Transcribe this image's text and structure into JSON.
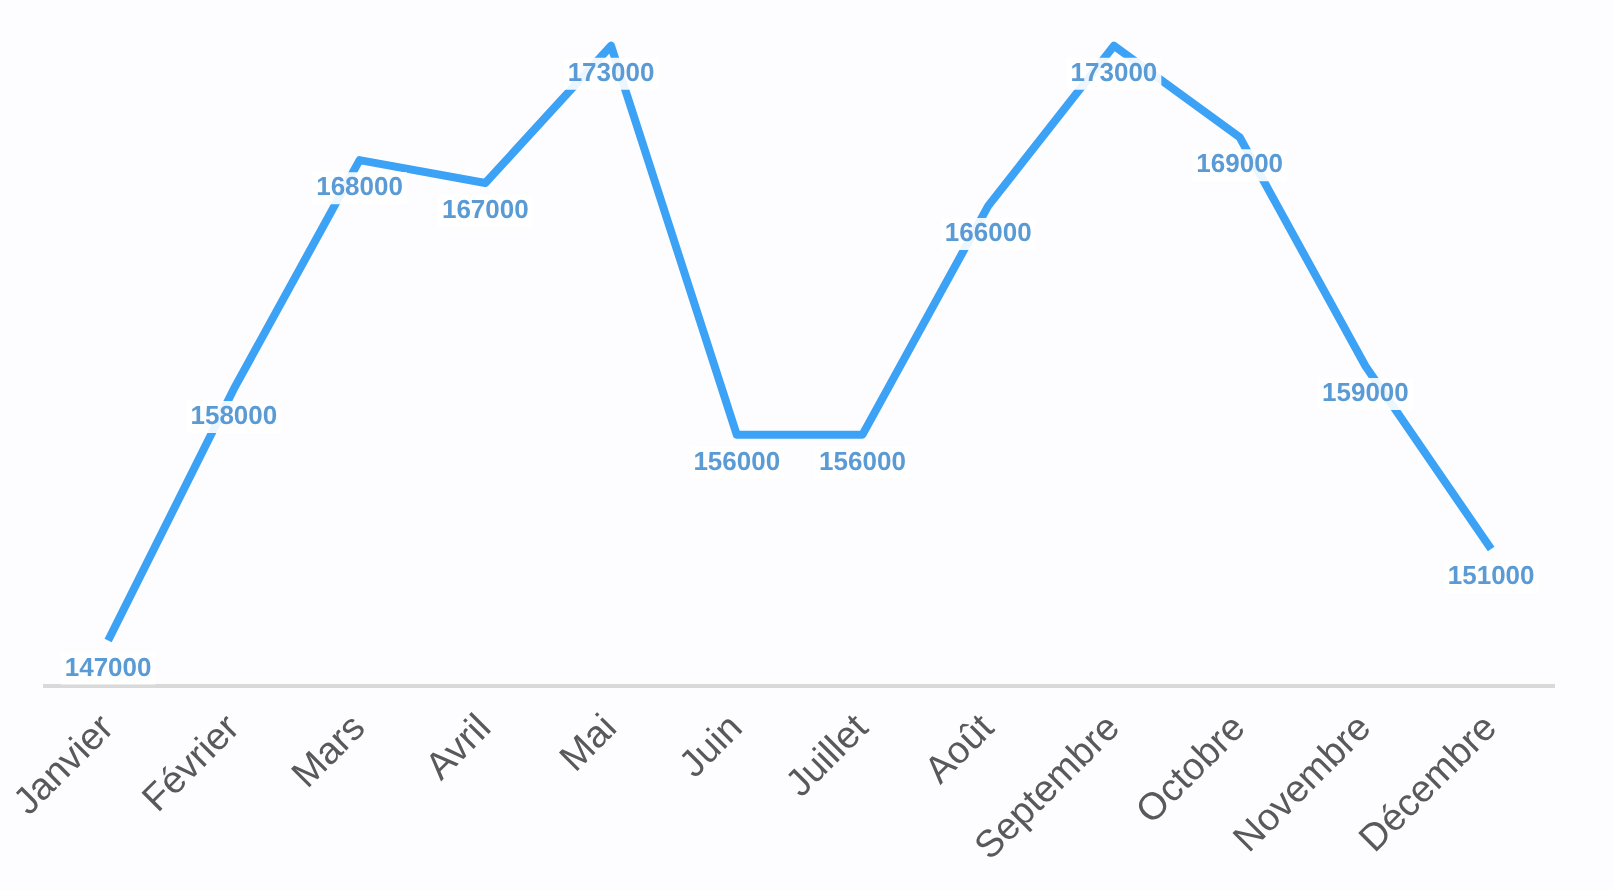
{
  "chart_data": {
    "type": "line",
    "categories": [
      "Janvier",
      "Février",
      "Mars",
      "Avril",
      "Mai",
      "Juin",
      "Juillet",
      "Août",
      "Septembre",
      "Octobre",
      "Novembre",
      "Décembre"
    ],
    "series": [
      {
        "color": "#3ca2f6",
        "values": [
          147000,
          158000,
          168000,
          167000,
          173000,
          156000,
          156000,
          166000,
          173000,
          169000,
          159000,
          151000
        ]
      }
    ],
    "tick_labels": "x",
    "data_labels": true,
    "grid": false,
    "legend": false,
    "marker": "none",
    "line_style": "solid"
  }
}
